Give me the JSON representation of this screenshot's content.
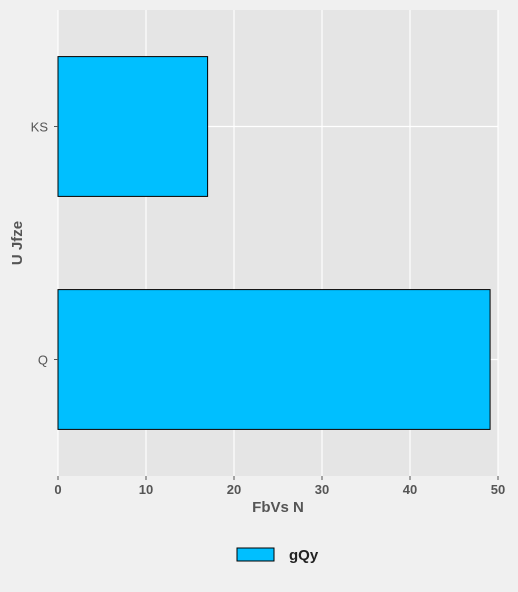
{
  "chart_data": {
    "type": "bar",
    "orientation": "horizontal",
    "categories": [
      "Q",
      "KS"
    ],
    "series": [
      {
        "name": "gQy",
        "values": [
          49.1,
          17.0
        ],
        "color": "#00bfff"
      }
    ],
    "xlabel": "FbVs N",
    "ylabel": "U Jfze",
    "xlim": [
      0,
      50
    ],
    "xticks": [
      0,
      10,
      20,
      30,
      40,
      50
    ],
    "grid": true,
    "legend_position": "bottom-center"
  },
  "colors": {
    "background": "#f0f0f0",
    "plot_background": "#e5e5e5",
    "grid": "#ffffff",
    "bar": "#00bfff"
  }
}
